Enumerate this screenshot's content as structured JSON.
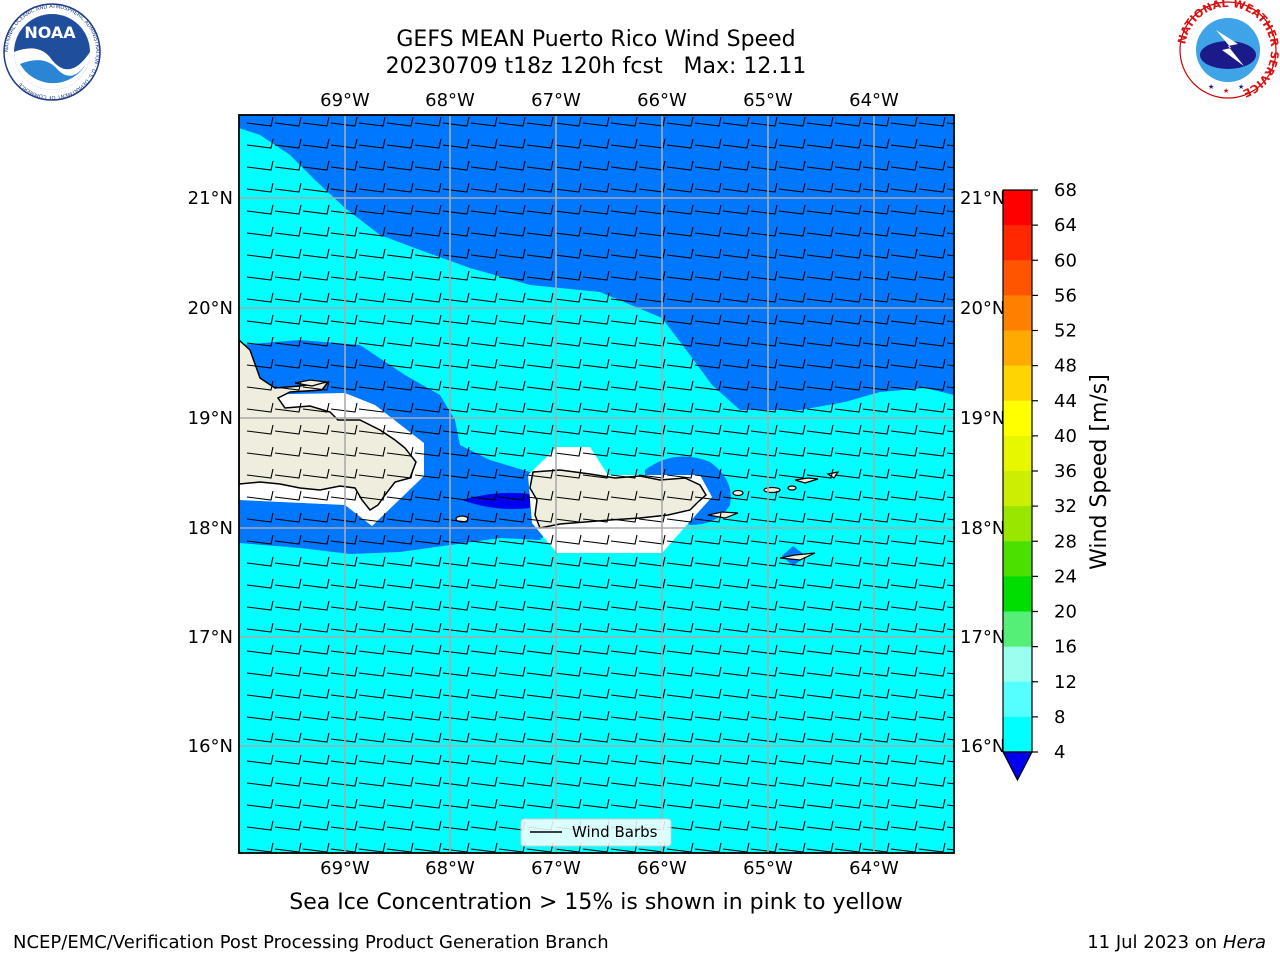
{
  "title_line1": "GEFS MEAN Puerto Rico Wind Speed",
  "title_line2": "20230709 t18z 120h fcst   Max: 12.11",
  "lon_labels": [
    "69°W",
    "68°W",
    "67°W",
    "66°W",
    "65°W",
    "64°W"
  ],
  "lat_labels": [
    "21°N",
    "20°N",
    "19°N",
    "18°N",
    "17°N",
    "16°N"
  ],
  "legend_label": "Wind Barbs",
  "colorbar": {
    "label": "Wind Speed [m/s]",
    "ticks": [
      "68",
      "64",
      "60",
      "56",
      "52",
      "48",
      "44",
      "40",
      "36",
      "32",
      "28",
      "24",
      "20",
      "16",
      "12",
      "8",
      "4"
    ],
    "colors": [
      "#ff0000",
      "#ff2800",
      "#ff5500",
      "#ff8000",
      "#ffaa00",
      "#ffd500",
      "#ffff00",
      "#e6f700",
      "#ccee00",
      "#99e600",
      "#4ce000",
      "#00dd00",
      "#55ee77",
      "#99ffee",
      "#55ffff",
      "#00ffff",
      "#0077ff"
    ],
    "extend_color": "#0000ee"
  },
  "field_colors": {
    "cyan_8_12": "#00ffff",
    "blue_4_8": "#0077ff",
    "dark_blue_below_4": "#0000ee",
    "land": "#efedde"
  },
  "note": "Sea Ice Concentration > 15% is shown in pink to yellow",
  "credit_left": "NCEP/EMC/Verification Post Processing Product Generation Branch",
  "credit_date": "11 Jul 2023 on ",
  "credit_host": "Hera",
  "noaa_logo_text": "NOAA",
  "noaa_ring_text": "NATIONAL OCEANIC AND ATMOSPHERIC ADMINISTRATION · U.S. DEPARTMENT OF COMMERCE",
  "nws_ring_text": "NATIONAL WEATHER SERVICE"
}
